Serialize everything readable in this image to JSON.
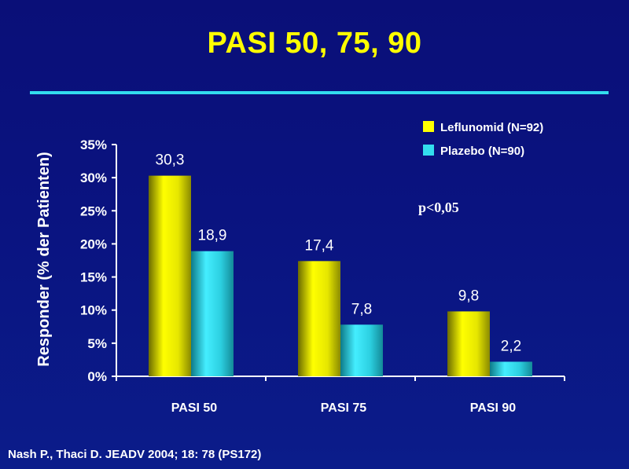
{
  "slide": {
    "title": "PASI 50, 75, 90",
    "citation": "Nash P., Thaci D.  JEADV 2004; 18: 78 (PS172)"
  },
  "chart_data": {
    "type": "bar",
    "categories": [
      "PASI 50",
      "PASI 75",
      "PASI 90"
    ],
    "series": [
      {
        "name": "Leflunomid (N=92)",
        "values": [
          30.3,
          17.4,
          9.8
        ],
        "labels": [
          "30,3",
          "17,4",
          "9,8"
        ],
        "color": "#ffff00"
      },
      {
        "name": "Plazebo (N=90)",
        "values": [
          18.9,
          7.8,
          2.2
        ],
        "labels": [
          "18,9",
          "7,8",
          "2,2"
        ],
        "color": "#33ddee"
      }
    ],
    "ylabel": "Responder (% der Patienten)",
    "ylim": [
      0,
      35
    ],
    "yticks": [
      "0%",
      "5%",
      "10%",
      "15%",
      "20%",
      "25%",
      "30%",
      "35%"
    ],
    "annotation": "p<0,05",
    "legend_position": "top-right",
    "grid": false
  }
}
